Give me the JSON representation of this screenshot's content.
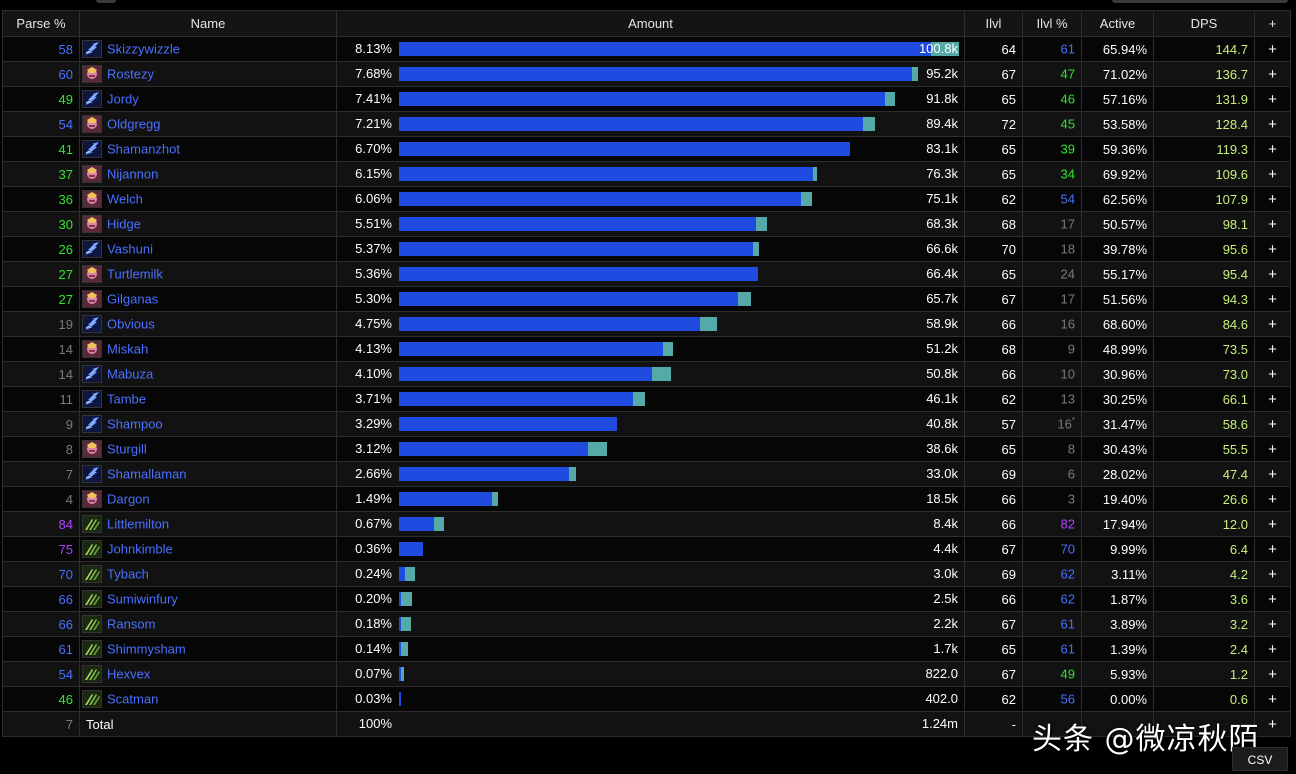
{
  "headers": {
    "parse": "Parse %",
    "name": "Name",
    "amount": "Amount",
    "ilvl": "Ilvl",
    "ilvl_pct": "Ilvl %",
    "active": "Active",
    "dps": "DPS",
    "plus": "+"
  },
  "rows": [
    {
      "parse": "58",
      "parse_color": "#4a70ff",
      "cls": "shaman",
      "name": "Skizzywizzle",
      "pct": "8.13%",
      "bar": 0.813,
      "bar_total": 0.855,
      "amount": "100.8k",
      "ilvl": "64",
      "ilvl_pct": "61",
      "ilvl_pct_color": "#4a70ff",
      "ilvl_sup": "",
      "active": "65.94%",
      "dps": "144.7",
      "dps_color": "#c8f07a"
    },
    {
      "parse": "60",
      "parse_color": "#4a70ff",
      "cls": "paladin",
      "name": "Rostezy",
      "pct": "7.68%",
      "bar": 0.783,
      "bar_total": 0.792,
      "amount": "95.2k",
      "ilvl": "67",
      "ilvl_pct": "47",
      "ilvl_pct_color": "#2ee62e",
      "ilvl_sup": "",
      "active": "71.02%",
      "dps": "136.7",
      "dps_color": "#c8f07a"
    },
    {
      "parse": "49",
      "parse_color": "#2ee62e",
      "cls": "shaman",
      "name": "Jordy",
      "pct": "7.41%",
      "bar": 0.742,
      "bar_total": 0.757,
      "amount": "91.8k",
      "ilvl": "65",
      "ilvl_pct": "46",
      "ilvl_pct_color": "#2ee62e",
      "ilvl_sup": "",
      "active": "57.16%",
      "dps": "131.9",
      "dps_color": "#c8f07a"
    },
    {
      "parse": "54",
      "parse_color": "#4a70ff",
      "cls": "paladin",
      "name": "Oldgregg",
      "pct": "7.21%",
      "bar": 0.709,
      "bar_total": 0.727,
      "amount": "89.4k",
      "ilvl": "72",
      "ilvl_pct": "45",
      "ilvl_pct_color": "#2ee62e",
      "ilvl_sup": "",
      "active": "53.58%",
      "dps": "128.4",
      "dps_color": "#c8f07a"
    },
    {
      "parse": "41",
      "parse_color": "#2ee62e",
      "cls": "shaman",
      "name": "Shamanzhot",
      "pct": "6.70%",
      "bar": 0.688,
      "bar_total": 0.688,
      "amount": "83.1k",
      "ilvl": "65",
      "ilvl_pct": "39",
      "ilvl_pct_color": "#2ee62e",
      "ilvl_sup": "",
      "active": "59.36%",
      "dps": "119.3",
      "dps_color": "#c8f07a"
    },
    {
      "parse": "37",
      "parse_color": "#2ee62e",
      "cls": "paladin",
      "name": "Nijannon",
      "pct": "6.15%",
      "bar": 0.632,
      "bar_total": 0.638,
      "amount": "76.3k",
      "ilvl": "65",
      "ilvl_pct": "34",
      "ilvl_pct_color": "#2ee62e",
      "ilvl_sup": "",
      "active": "69.92%",
      "dps": "109.6",
      "dps_color": "#c8f07a"
    },
    {
      "parse": "36",
      "parse_color": "#2ee62e",
      "cls": "paladin",
      "name": "Welch",
      "pct": "6.06%",
      "bar": 0.614,
      "bar_total": 0.63,
      "amount": "75.1k",
      "ilvl": "62",
      "ilvl_pct": "54",
      "ilvl_pct_color": "#4a70ff",
      "ilvl_sup": "",
      "active": "62.56%",
      "dps": "107.9",
      "dps_color": "#c8f07a"
    },
    {
      "parse": "30",
      "parse_color": "#2ee62e",
      "cls": "paladin",
      "name": "Hidge",
      "pct": "5.51%",
      "bar": 0.545,
      "bar_total": 0.562,
      "amount": "68.3k",
      "ilvl": "68",
      "ilvl_pct": "17",
      "ilvl_pct_color": "#7a7a7a",
      "ilvl_sup": "",
      "active": "50.57%",
      "dps": "98.1",
      "dps_color": "#c8f07a"
    },
    {
      "parse": "26",
      "parse_color": "#2ee62e",
      "cls": "shaman",
      "name": "Vashuni",
      "pct": "5.37%",
      "bar": 0.541,
      "bar_total": 0.549,
      "amount": "66.6k",
      "ilvl": "70",
      "ilvl_pct": "18",
      "ilvl_pct_color": "#7a7a7a",
      "ilvl_sup": "",
      "active": "39.78%",
      "dps": "95.6",
      "dps_color": "#c8f07a"
    },
    {
      "parse": "27",
      "parse_color": "#2ee62e",
      "cls": "paladin",
      "name": "Turtlemilk",
      "pct": "5.36%",
      "bar": 0.548,
      "bar_total": 0.548,
      "amount": "66.4k",
      "ilvl": "65",
      "ilvl_pct": "24",
      "ilvl_pct_color": "#7a7a7a",
      "ilvl_sup": "",
      "active": "55.17%",
      "dps": "95.4",
      "dps_color": "#c8f07a"
    },
    {
      "parse": "27",
      "parse_color": "#2ee62e",
      "cls": "paladin",
      "name": "Gilganas",
      "pct": "5.30%",
      "bar": 0.518,
      "bar_total": 0.537,
      "amount": "65.7k",
      "ilvl": "67",
      "ilvl_pct": "17",
      "ilvl_pct_color": "#7a7a7a",
      "ilvl_sup": "",
      "active": "51.56%",
      "dps": "94.3",
      "dps_color": "#c8f07a"
    },
    {
      "parse": "19",
      "parse_color": "#7a7a7a",
      "cls": "shaman",
      "name": "Obvious",
      "pct": "4.75%",
      "bar": 0.46,
      "bar_total": 0.485,
      "amount": "58.9k",
      "ilvl": "66",
      "ilvl_pct": "16",
      "ilvl_pct_color": "#7a7a7a",
      "ilvl_sup": "",
      "active": "68.60%",
      "dps": "84.6",
      "dps_color": "#c8f07a"
    },
    {
      "parse": "14",
      "parse_color": "#7a7a7a",
      "cls": "paladin",
      "name": "Miskah",
      "pct": "4.13%",
      "bar": 0.403,
      "bar_total": 0.418,
      "amount": "51.2k",
      "ilvl": "68",
      "ilvl_pct": "9",
      "ilvl_pct_color": "#7a7a7a",
      "ilvl_sup": "",
      "active": "48.99%",
      "dps": "73.5",
      "dps_color": "#c8f07a"
    },
    {
      "parse": "14",
      "parse_color": "#7a7a7a",
      "cls": "shaman",
      "name": "Mabuza",
      "pct": "4.10%",
      "bar": 0.387,
      "bar_total": 0.415,
      "amount": "50.8k",
      "ilvl": "66",
      "ilvl_pct": "10",
      "ilvl_pct_color": "#7a7a7a",
      "ilvl_sup": "",
      "active": "30.96%",
      "dps": "73.0",
      "dps_color": "#c8f07a"
    },
    {
      "parse": "11",
      "parse_color": "#7a7a7a",
      "cls": "shaman",
      "name": "Tambe",
      "pct": "3.71%",
      "bar": 0.357,
      "bar_total": 0.376,
      "amount": "46.1k",
      "ilvl": "62",
      "ilvl_pct": "13",
      "ilvl_pct_color": "#7a7a7a",
      "ilvl_sup": "",
      "active": "30.25%",
      "dps": "66.1",
      "dps_color": "#c8f07a"
    },
    {
      "parse": "9",
      "parse_color": "#7a7a7a",
      "cls": "shaman",
      "name": "Shampoo",
      "pct": "3.29%",
      "bar": 0.333,
      "bar_total": 0.333,
      "amount": "40.8k",
      "ilvl": "57",
      "ilvl_pct": "16",
      "ilvl_pct_color": "#7a7a7a",
      "ilvl_sup": "*",
      "active": "31.47%",
      "dps": "58.6",
      "dps_color": "#c8f07a"
    },
    {
      "parse": "8",
      "parse_color": "#7a7a7a",
      "cls": "paladin",
      "name": "Sturgill",
      "pct": "3.12%",
      "bar": 0.288,
      "bar_total": 0.317,
      "amount": "38.6k",
      "ilvl": "65",
      "ilvl_pct": "8",
      "ilvl_pct_color": "#7a7a7a",
      "ilvl_sup": "",
      "active": "30.43%",
      "dps": "55.5",
      "dps_color": "#c8f07a"
    },
    {
      "parse": "7",
      "parse_color": "#7a7a7a",
      "cls": "shaman",
      "name": "Shamallaman",
      "pct": "2.66%",
      "bar": 0.26,
      "bar_total": 0.27,
      "amount": "33.0k",
      "ilvl": "69",
      "ilvl_pct": "6",
      "ilvl_pct_color": "#7a7a7a",
      "ilvl_sup": "",
      "active": "28.02%",
      "dps": "47.4",
      "dps_color": "#c8f07a"
    },
    {
      "parse": "4",
      "parse_color": "#7a7a7a",
      "cls": "paladin",
      "name": "Dargon",
      "pct": "1.49%",
      "bar": 0.142,
      "bar_total": 0.151,
      "amount": "18.5k",
      "ilvl": "66",
      "ilvl_pct": "3",
      "ilvl_pct_color": "#7a7a7a",
      "ilvl_sup": "",
      "active": "19.40%",
      "dps": "26.6",
      "dps_color": "#c8f07a"
    },
    {
      "parse": "84",
      "parse_color": "#b040ff",
      "cls": "druid",
      "name": "Littlemilton",
      "pct": "0.67%",
      "bar": 0.054,
      "bar_total": 0.068,
      "amount": "8.4k",
      "ilvl": "66",
      "ilvl_pct": "82",
      "ilvl_pct_color": "#b040ff",
      "ilvl_sup": "",
      "active": "17.94%",
      "dps": "12.0",
      "dps_color": "#c8f07a"
    },
    {
      "parse": "75",
      "parse_color": "#b040ff",
      "cls": "druid",
      "name": "Johnkimble",
      "pct": "0.36%",
      "bar": 0.037,
      "bar_total": 0.037,
      "amount": "4.4k",
      "ilvl": "67",
      "ilvl_pct": "70",
      "ilvl_pct_color": "#4a70ff",
      "ilvl_sup": "",
      "active": "9.99%",
      "dps": "6.4",
      "dps_color": "#c8f07a"
    },
    {
      "parse": "70",
      "parse_color": "#4a70ff",
      "cls": "druid",
      "name": "Tybach",
      "pct": "0.24%",
      "bar": 0.009,
      "bar_total": 0.024,
      "amount": "3.0k",
      "ilvl": "69",
      "ilvl_pct": "62",
      "ilvl_pct_color": "#4a70ff",
      "ilvl_sup": "",
      "active": "3.11%",
      "dps": "4.2",
      "dps_color": "#c8f07a"
    },
    {
      "parse": "66",
      "parse_color": "#4a70ff",
      "cls": "druid",
      "name": "Sumiwinfury",
      "pct": "0.20%",
      "bar": 0.003,
      "bar_total": 0.02,
      "amount": "2.5k",
      "ilvl": "66",
      "ilvl_pct": "62",
      "ilvl_pct_color": "#4a70ff",
      "ilvl_sup": "",
      "active": "1.87%",
      "dps": "3.6",
      "dps_color": "#c8f07a"
    },
    {
      "parse": "66",
      "parse_color": "#4a70ff",
      "cls": "druid",
      "name": "Ransom",
      "pct": "0.18%",
      "bar": 0.001,
      "bar_total": 0.018,
      "amount": "2.2k",
      "ilvl": "67",
      "ilvl_pct": "61",
      "ilvl_pct_color": "#4a70ff",
      "ilvl_sup": "",
      "active": "3.89%",
      "dps": "3.2",
      "dps_color": "#c8f07a"
    },
    {
      "parse": "61",
      "parse_color": "#4a70ff",
      "cls": "druid",
      "name": "Shimmysham",
      "pct": "0.14%",
      "bar": 0.003,
      "bar_total": 0.014,
      "amount": "1.7k",
      "ilvl": "65",
      "ilvl_pct": "61",
      "ilvl_pct_color": "#4a70ff",
      "ilvl_sup": "",
      "active": "1.39%",
      "dps": "2.4",
      "dps_color": "#c8f07a"
    },
    {
      "parse": "54",
      "parse_color": "#4a70ff",
      "cls": "druid",
      "name": "Hexvex",
      "pct": "0.07%",
      "bar": 0.001,
      "bar_total": 0.007,
      "amount": "822.0",
      "ilvl": "67",
      "ilvl_pct": "49",
      "ilvl_pct_color": "#2ee62e",
      "ilvl_sup": "",
      "active": "5.93%",
      "dps": "1.2",
      "dps_color": "#c8f07a"
    },
    {
      "parse": "46",
      "parse_color": "#2ee62e",
      "cls": "druid",
      "name": "Scatman",
      "pct": "0.03%",
      "bar": 0.003,
      "bar_total": 0.003,
      "amount": "402.0",
      "ilvl": "62",
      "ilvl_pct": "56",
      "ilvl_pct_color": "#4a70ff",
      "ilvl_sup": "",
      "active": "0.00%",
      "dps": "0.6",
      "dps_color": "#c8f07a"
    }
  ],
  "total": {
    "parse": "7",
    "label": "Total",
    "pct": "100%",
    "amount": "1.24m",
    "ilvl": "-",
    "plus": "+"
  },
  "plus_label": "+",
  "csv_label": "CSV",
  "watermark": "头条 @微凉秋陌",
  "colors": {
    "bar_primary": "#1f4be0",
    "bar_secondary": "#55a9a6",
    "name_link": "#4a70ff",
    "header_bg": "#141414"
  },
  "icons": {
    "shaman": "lightning-bolt-icon",
    "paladin": "paladin-portrait-icon",
    "druid": "claw-swipe-icon"
  }
}
